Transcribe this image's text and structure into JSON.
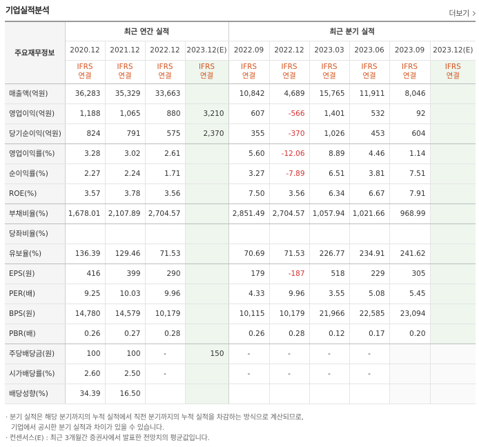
{
  "header": {
    "title": "기업실적분석",
    "more_label": "더보기"
  },
  "table": {
    "row_header_label": "주요재무정보",
    "annual_group": "최근 연간 실적",
    "quarter_group": "최근 분기 실적",
    "annual_years": [
      "2020.12",
      "2021.12",
      "2022.12",
      "2023.12(E)"
    ],
    "quarter_periods": [
      "2022.09",
      "2022.12",
      "2023.03",
      "2023.06",
      "2023.09",
      "2023.12(E)"
    ],
    "ifrs_line1": "IFRS",
    "ifrs_line2": "연결",
    "rows": [
      {
        "label": "매출액(억원)",
        "annual": [
          "36,283",
          "35,329",
          "33,663",
          ""
        ],
        "quarter": [
          "10,842",
          "4,689",
          "15,765",
          "11,911",
          "8,046",
          ""
        ]
      },
      {
        "label": "영업이익(억원)",
        "annual": [
          "1,188",
          "1,065",
          "880",
          "3,210"
        ],
        "quarter": [
          "607",
          "-566",
          "1,401",
          "532",
          "92",
          ""
        ]
      },
      {
        "label": "당기순이익(억원)",
        "annual": [
          "824",
          "791",
          "575",
          "2,370"
        ],
        "quarter": [
          "355",
          "-370",
          "1,026",
          "453",
          "604",
          ""
        ]
      },
      {
        "label": "영업이익률(%)",
        "annual": [
          "3.28",
          "3.02",
          "2.61",
          ""
        ],
        "quarter": [
          "5.60",
          "-12.06",
          "8.89",
          "4.46",
          "1.14",
          ""
        ]
      },
      {
        "label": "순이익률(%)",
        "annual": [
          "2.27",
          "2.24",
          "1.71",
          ""
        ],
        "quarter": [
          "3.27",
          "-7.89",
          "6.51",
          "3.81",
          "7.51",
          ""
        ]
      },
      {
        "label": "ROE(%)",
        "annual": [
          "3.57",
          "3.78",
          "3.56",
          ""
        ],
        "quarter": [
          "7.50",
          "3.56",
          "6.34",
          "6.67",
          "7.91",
          ""
        ]
      },
      {
        "label": "부채비율(%)",
        "annual": [
          "1,678.01",
          "2,107.89",
          "2,704.57",
          ""
        ],
        "quarter": [
          "2,851.49",
          "2,704.57",
          "1,057.94",
          "1,021.66",
          "968.99",
          ""
        ]
      },
      {
        "label": "당좌비율(%)",
        "annual": [
          "",
          "",
          "",
          ""
        ],
        "quarter": [
          "",
          "",
          "",
          "",
          "",
          ""
        ]
      },
      {
        "label": "유보율(%)",
        "annual": [
          "136.39",
          "129.46",
          "71.53",
          ""
        ],
        "quarter": [
          "70.69",
          "71.53",
          "226.77",
          "234.91",
          "241.62",
          ""
        ]
      },
      {
        "label": "EPS(원)",
        "annual": [
          "416",
          "399",
          "290",
          ""
        ],
        "quarter": [
          "179",
          "-187",
          "518",
          "229",
          "305",
          ""
        ]
      },
      {
        "label": "PER(배)",
        "annual": [
          "9.25",
          "10.03",
          "9.96",
          ""
        ],
        "quarter": [
          "4.33",
          "9.96",
          "3.55",
          "5.08",
          "5.45",
          ""
        ]
      },
      {
        "label": "BPS(원)",
        "annual": [
          "14,780",
          "14,579",
          "10,179",
          ""
        ],
        "quarter": [
          "10,115",
          "10,179",
          "21,966",
          "22,585",
          "23,094",
          ""
        ]
      },
      {
        "label": "PBR(배)",
        "annual": [
          "0.26",
          "0.27",
          "0.28",
          ""
        ],
        "quarter": [
          "0.26",
          "0.28",
          "0.12",
          "0.17",
          "0.20",
          ""
        ]
      },
      {
        "label": "주당배당금(원)",
        "annual": [
          "100",
          "100",
          "-",
          "150"
        ],
        "quarter": [
          "-",
          "-",
          "-",
          "-",
          "",
          ""
        ]
      },
      {
        "label": "시가배당률(%)",
        "annual": [
          "2.60",
          "2.50",
          "-",
          ""
        ],
        "quarter": [
          "-",
          "-",
          "-",
          "-",
          "",
          ""
        ]
      },
      {
        "label": "배당성향(%)",
        "annual": [
          "34.39",
          "16.50",
          "",
          ""
        ],
        "quarter": [
          "",
          "",
          "",
          "",
          "",
          ""
        ]
      }
    ]
  },
  "notes": {
    "line1": "· 분기 실적은 해당 분기까지의 누적 실적에서 직전 분기까지의 누적 실적을 차감하는 방식으로 계산되므로,",
    "line2": "기업에서 공시한 분기 실적과 차이가 있을 수 있습니다.",
    "line3": "· 컨센서스(E) : 최근 3개월간 증권사에서 발표한 전망치의 평균값입니다."
  },
  "colors": {
    "ifrs": "#d3541f",
    "negative": "#d63031",
    "estimate_bg": "#eef6ee"
  }
}
